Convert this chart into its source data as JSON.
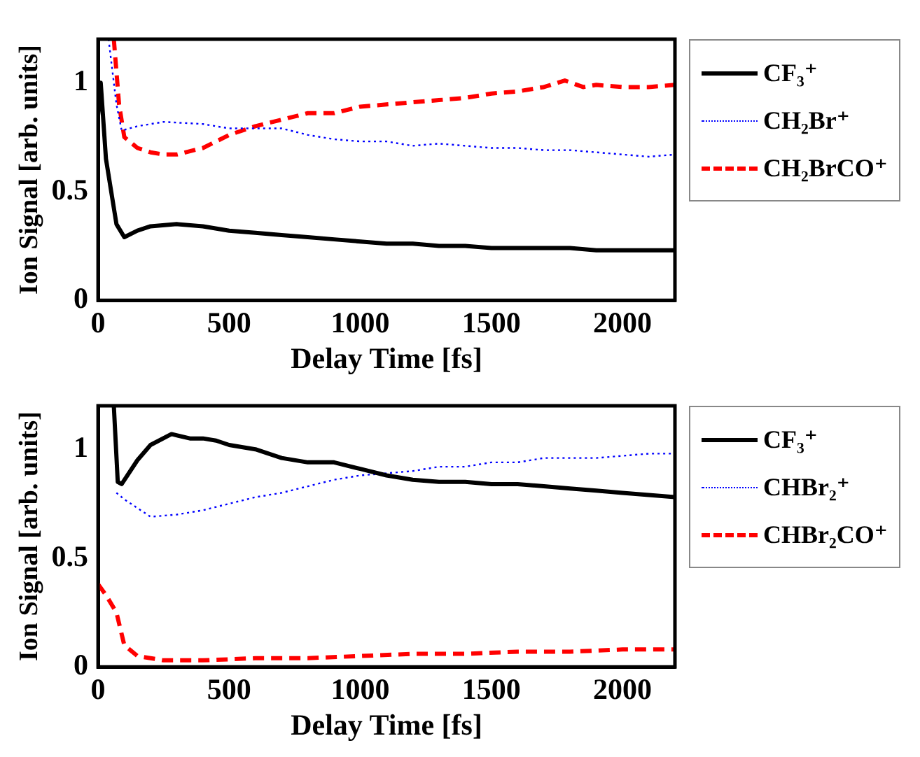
{
  "chart_data": [
    {
      "type": "line",
      "xlabel": "Delay Time [fs]",
      "ylabel": "Ion Signal [arb. units]",
      "xlim": [
        0,
        2200
      ],
      "xticks": [
        0,
        500,
        1000,
        1500,
        2000
      ],
      "ylim": [
        0,
        1.2
      ],
      "yticks": [
        0,
        0.5,
        1
      ],
      "legend": "right",
      "series": [
        {
          "name": "CF₃⁺",
          "color": "#000000",
          "line_style": "solid",
          "x": [
            0,
            10,
            30,
            50,
            70,
            100,
            150,
            200,
            300,
            400,
            500,
            600,
            700,
            800,
            900,
            1000,
            1100,
            1200,
            1300,
            1400,
            1500,
            1600,
            1700,
            1800,
            1900,
            2000,
            2100,
            2200
          ],
          "values": [
            0.85,
            1.0,
            0.65,
            0.5,
            0.35,
            0.29,
            0.32,
            0.34,
            0.35,
            0.34,
            0.32,
            0.31,
            0.3,
            0.29,
            0.28,
            0.27,
            0.26,
            0.26,
            0.25,
            0.25,
            0.24,
            0.24,
            0.24,
            0.24,
            0.23,
            0.23,
            0.23,
            0.23
          ]
        },
        {
          "name": "CH₂Br⁺",
          "color": "#0000ff",
          "line_style": "dotted",
          "x": [
            40,
            70,
            90,
            150,
            250,
            400,
            500,
            600,
            700,
            800,
            900,
            1000,
            1100,
            1200,
            1300,
            1400,
            1500,
            1600,
            1700,
            1800,
            1900,
            2000,
            2100,
            2200
          ],
          "values": [
            1.2,
            0.9,
            0.78,
            0.8,
            0.82,
            0.81,
            0.79,
            0.79,
            0.79,
            0.76,
            0.74,
            0.73,
            0.73,
            0.71,
            0.72,
            0.71,
            0.7,
            0.7,
            0.69,
            0.69,
            0.68,
            0.67,
            0.66,
            0.67
          ]
        },
        {
          "name": "CH₂BrCO⁺",
          "color": "#ff0000",
          "line_style": "dashed",
          "x": [
            60,
            80,
            100,
            150,
            200,
            250,
            300,
            400,
            500,
            600,
            700,
            800,
            900,
            1000,
            1100,
            1200,
            1300,
            1400,
            1500,
            1600,
            1700,
            1780,
            1850,
            1900,
            2000,
            2100,
            2200
          ],
          "values": [
            1.2,
            0.9,
            0.75,
            0.7,
            0.68,
            0.67,
            0.67,
            0.7,
            0.76,
            0.8,
            0.83,
            0.86,
            0.86,
            0.89,
            0.9,
            0.91,
            0.92,
            0.93,
            0.95,
            0.96,
            0.98,
            1.01,
            0.98,
            0.99,
            0.98,
            0.98,
            0.99
          ]
        }
      ]
    },
    {
      "type": "line",
      "xlabel": "Delay Time [fs]",
      "ylabel": "Ion Signal [arb. units]",
      "xlim": [
        0,
        2200
      ],
      "xticks": [
        0,
        500,
        1000,
        1500,
        2000
      ],
      "ylim": [
        0,
        1.2
      ],
      "yticks": [
        0,
        0.5,
        1
      ],
      "legend": "right",
      "series": [
        {
          "name": "CF₃⁺",
          "color": "#000000",
          "line_style": "solid",
          "x": [
            60,
            75,
            90,
            150,
            200,
            280,
            350,
            400,
            450,
            500,
            600,
            700,
            800,
            900,
            1000,
            1100,
            1200,
            1300,
            1400,
            1500,
            1600,
            1700,
            1800,
            1900,
            2000,
            2100,
            2200
          ],
          "values": [
            1.2,
            0.85,
            0.84,
            0.95,
            1.02,
            1.07,
            1.05,
            1.05,
            1.04,
            1.02,
            1.0,
            0.96,
            0.94,
            0.94,
            0.91,
            0.88,
            0.86,
            0.85,
            0.85,
            0.84,
            0.84,
            0.83,
            0.82,
            0.81,
            0.8,
            0.79,
            0.78
          ]
        },
        {
          "name": "CHBr₂⁺",
          "color": "#0000ff",
          "line_style": "dotted",
          "x": [
            70,
            100,
            200,
            300,
            400,
            500,
            600,
            700,
            800,
            900,
            1000,
            1100,
            1200,
            1300,
            1400,
            1500,
            1600,
            1700,
            1800,
            1900,
            2000,
            2100,
            2200
          ],
          "values": [
            0.8,
            0.77,
            0.69,
            0.7,
            0.72,
            0.75,
            0.78,
            0.8,
            0.83,
            0.86,
            0.88,
            0.89,
            0.9,
            0.92,
            0.92,
            0.94,
            0.94,
            0.96,
            0.96,
            0.96,
            0.97,
            0.98,
            0.98
          ]
        },
        {
          "name": "CHBr₂CO⁺",
          "color": "#ff0000",
          "line_style": "dashed",
          "x": [
            0,
            30,
            70,
            100,
            150,
            250,
            400,
            600,
            800,
            1000,
            1200,
            1400,
            1600,
            1800,
            2000,
            2200
          ],
          "values": [
            0.38,
            0.33,
            0.25,
            0.1,
            0.05,
            0.03,
            0.03,
            0.04,
            0.04,
            0.05,
            0.06,
            0.06,
            0.07,
            0.07,
            0.08,
            0.08
          ]
        }
      ]
    }
  ]
}
